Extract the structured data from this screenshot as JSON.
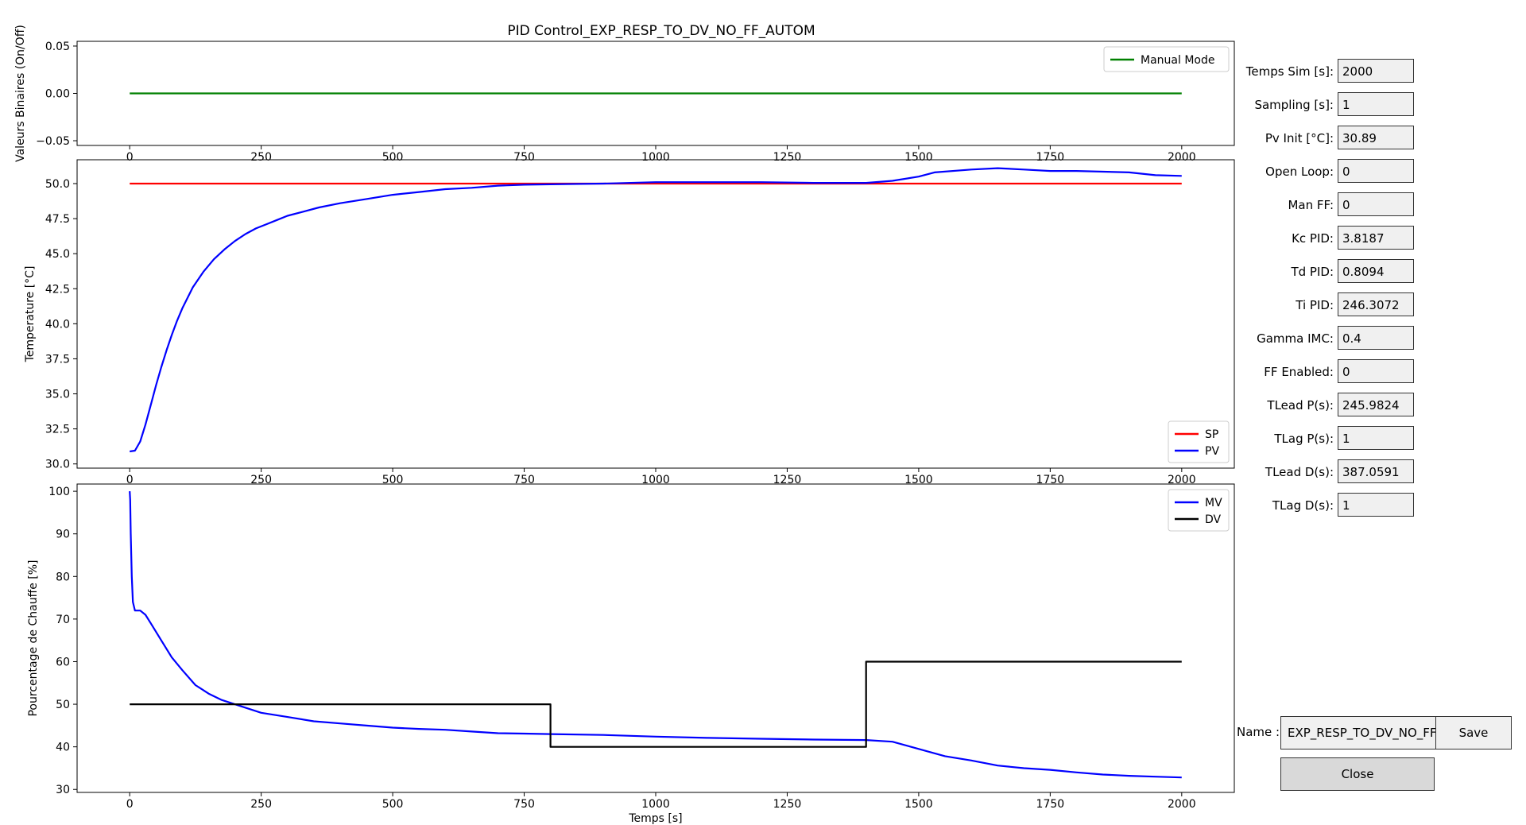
{
  "figure_title": "PID Control_EXP_RESP_TO_DV_NO_FF_AUTOM",
  "params": [
    {
      "label": "Temps Sim [s]:",
      "value": "2000"
    },
    {
      "label": "Sampling [s]:",
      "value": "1"
    },
    {
      "label": "Pv Init [°C]:",
      "value": "30.89"
    },
    {
      "label": "Open Loop:",
      "value": "0"
    },
    {
      "label": "Man FF:",
      "value": "0"
    },
    {
      "label": "Kc PID:",
      "value": "3.8187"
    },
    {
      "label": "Td PID:",
      "value": "0.8094"
    },
    {
      "label": "Ti PID:",
      "value": "246.3072"
    },
    {
      "label": "Gamma IMC:",
      "value": "0.4"
    },
    {
      "label": "FF Enabled:",
      "value": "0"
    },
    {
      "label": "TLead P(s):",
      "value": "245.9824"
    },
    {
      "label": "TLag P(s):",
      "value": "1"
    },
    {
      "label": "TLead D(s):",
      "value": "387.0591"
    },
    {
      "label": "TLag D(s):",
      "value": "1"
    }
  ],
  "name_field": {
    "label": "Name :",
    "value": "EXP_RESP_TO_DV_NO_FF_AUTOM"
  },
  "save_label": "Save",
  "close_label": "Close",
  "colors": {
    "green": "#008000",
    "red": "#ff0000",
    "blue": "#0000ff",
    "black": "#000000"
  },
  "chart_data": [
    {
      "type": "line",
      "ylabel": "Valeurs Binaires (On/Off)",
      "xlim": [
        -100,
        2100
      ],
      "ylim": [
        -0.055,
        0.055
      ],
      "xticks": [
        0,
        250,
        500,
        750,
        1000,
        1250,
        1500,
        1750,
        2000
      ],
      "yticks": [
        -0.05,
        0.0,
        0.05
      ],
      "ytick_labels": [
        "−0.05",
        "0.00",
        "0.05"
      ],
      "legend_position": "top-right",
      "series": [
        {
          "name": "Manual Mode",
          "color": "#008000",
          "x": [
            0,
            2000
          ],
          "y": [
            0,
            0
          ]
        }
      ]
    },
    {
      "type": "line",
      "ylabel": "Temperature [°C]",
      "xlim": [
        -100,
        2100
      ],
      "ylim": [
        29.7,
        51.7
      ],
      "xticks": [
        0,
        250,
        500,
        750,
        1000,
        1250,
        1500,
        1750,
        2000
      ],
      "yticks": [
        30.0,
        32.5,
        35.0,
        37.5,
        40.0,
        42.5,
        45.0,
        47.5,
        50.0
      ],
      "ytick_labels": [
        "30.0",
        "32.5",
        "35.0",
        "37.5",
        "40.0",
        "42.5",
        "45.0",
        "47.5",
        "50.0"
      ],
      "legend_position": "bottom-right",
      "series": [
        {
          "name": "SP",
          "color": "#ff0000",
          "x": [
            0,
            2000
          ],
          "y": [
            50,
            50
          ]
        },
        {
          "name": "PV",
          "color": "#0000ff",
          "x": [
            0,
            10,
            20,
            30,
            40,
            50,
            60,
            70,
            80,
            90,
            100,
            120,
            140,
            160,
            180,
            200,
            220,
            240,
            260,
            280,
            300,
            330,
            360,
            400,
            450,
            500,
            550,
            600,
            650,
            700,
            750,
            800,
            900,
            1000,
            1100,
            1200,
            1300,
            1400,
            1450,
            1500,
            1530,
            1600,
            1650,
            1700,
            1750,
            1800,
            1900,
            1950,
            2000
          ],
          "y": [
            30.89,
            30.95,
            31.6,
            32.8,
            34.2,
            35.6,
            36.9,
            38.1,
            39.2,
            40.2,
            41.1,
            42.6,
            43.7,
            44.6,
            45.3,
            45.9,
            46.4,
            46.8,
            47.1,
            47.4,
            47.7,
            48.0,
            48.3,
            48.6,
            48.9,
            49.2,
            49.4,
            49.6,
            49.7,
            49.85,
            49.92,
            49.95,
            50.0,
            50.1,
            50.1,
            50.1,
            50.05,
            50.05,
            50.2,
            50.5,
            50.8,
            51.0,
            51.1,
            51.0,
            50.9,
            50.9,
            50.8,
            50.6,
            50.55
          ]
        }
      ]
    },
    {
      "type": "line",
      "ylabel": "Pourcentage de Chauffe [%]",
      "xlabel": "Temps [s]",
      "xlim": [
        -100,
        2100
      ],
      "ylim": [
        29.3,
        101.7
      ],
      "xticks": [
        0,
        250,
        500,
        750,
        1000,
        1250,
        1500,
        1750,
        2000
      ],
      "yticks": [
        30,
        40,
        50,
        60,
        70,
        80,
        90,
        100
      ],
      "ytick_labels": [
        "30",
        "40",
        "50",
        "60",
        "70",
        "80",
        "90",
        "100"
      ],
      "legend_position": "top-right",
      "series": [
        {
          "name": "MV",
          "color": "#0000ff",
          "x": [
            0,
            1,
            2,
            4,
            6,
            10,
            20,
            30,
            40,
            60,
            80,
            100,
            125,
            150,
            175,
            200,
            250,
            300,
            350,
            400,
            450,
            500,
            550,
            600,
            650,
            700,
            750,
            800,
            900,
            1000,
            1100,
            1200,
            1300,
            1400,
            1450,
            1500,
            1550,
            1600,
            1650,
            1700,
            1750,
            1800,
            1850,
            1900,
            1950,
            2000
          ],
          "y": [
            100,
            98,
            90,
            80,
            74,
            72,
            72,
            71,
            69,
            65,
            61,
            58,
            54.5,
            52.5,
            51,
            50,
            48,
            47,
            46,
            45.5,
            45,
            44.5,
            44.2,
            44,
            43.6,
            43.2,
            43.1,
            43.0,
            42.8,
            42.4,
            42.1,
            41.9,
            41.7,
            41.6,
            41.2,
            39.5,
            37.8,
            36.8,
            35.6,
            35.0,
            34.6,
            34.0,
            33.5,
            33.2,
            33.0,
            32.8
          ]
        },
        {
          "name": "DV",
          "color": "#000000",
          "x": [
            0,
            800,
            800,
            1400,
            1400,
            2000
          ],
          "y": [
            50,
            50,
            40,
            40,
            60,
            60
          ]
        }
      ]
    }
  ]
}
